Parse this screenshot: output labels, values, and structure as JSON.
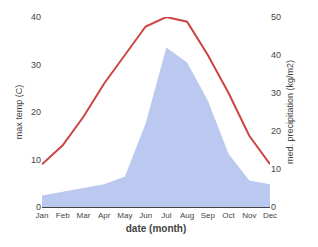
{
  "chart_data": {
    "type": "line",
    "categories": [
      "Jan",
      "Feb",
      "Mar",
      "Apr",
      "May",
      "Jun",
      "Jul",
      "Aug",
      "Sep",
      "Oct",
      "Nov",
      "Dec"
    ],
    "xlabel": "date (month)",
    "ylabel": "max temp (C)",
    "y2label": "med. precipitation (kg/m2)",
    "series": [
      {
        "type": "area",
        "axis": "y2",
        "color": "#bbc8f0",
        "values": [
          3,
          4,
          5,
          6,
          8,
          22,
          42,
          38,
          28,
          14,
          7,
          6
        ]
      },
      {
        "type": "line",
        "color": "#cc4444",
        "values": [
          9,
          13,
          19,
          26,
          32,
          38,
          40,
          39,
          32,
          24,
          15,
          9
        ]
      }
    ],
    "ylim": [
      0,
      40
    ],
    "yticks": [
      0,
      10,
      20,
      30,
      40
    ],
    "y2lim": [
      0,
      50
    ],
    "y2ticks": [
      0,
      10,
      20,
      30,
      40,
      50
    ],
    "grid": false
  }
}
